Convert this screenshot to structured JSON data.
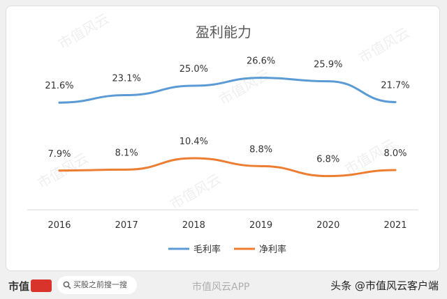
{
  "chart_data": {
    "type": "line",
    "title": "盈利能力",
    "categories": [
      "2016",
      "2017",
      "2018",
      "2019",
      "2020",
      "2021"
    ],
    "series": [
      {
        "name": "毛利率",
        "values": [
          21.6,
          23.1,
          25.0,
          26.6,
          25.9,
          21.7
        ],
        "labels": [
          "21.6%",
          "23.1%",
          "25.0%",
          "26.6%",
          "25.9%",
          "21.7%"
        ],
        "color": "#5b9bd5"
      },
      {
        "name": "净利率",
        "values": [
          7.9,
          8.1,
          10.4,
          8.8,
          6.8,
          8.0
        ],
        "labels": [
          "7.9%",
          "8.1%",
          "10.4%",
          "8.8%",
          "6.8%",
          "8.0%"
        ],
        "color": "#ed7d31"
      }
    ],
    "ylim": [
      0,
      30
    ],
    "grid": false,
    "legend_position": "bottom"
  },
  "watermark_text": "市值风云",
  "footer": {
    "brand": "市值",
    "search_placeholder": "买股之前搜一搜",
    "center_watermark": "市值风云APP",
    "credit": "头条 @市值风云客户端"
  }
}
